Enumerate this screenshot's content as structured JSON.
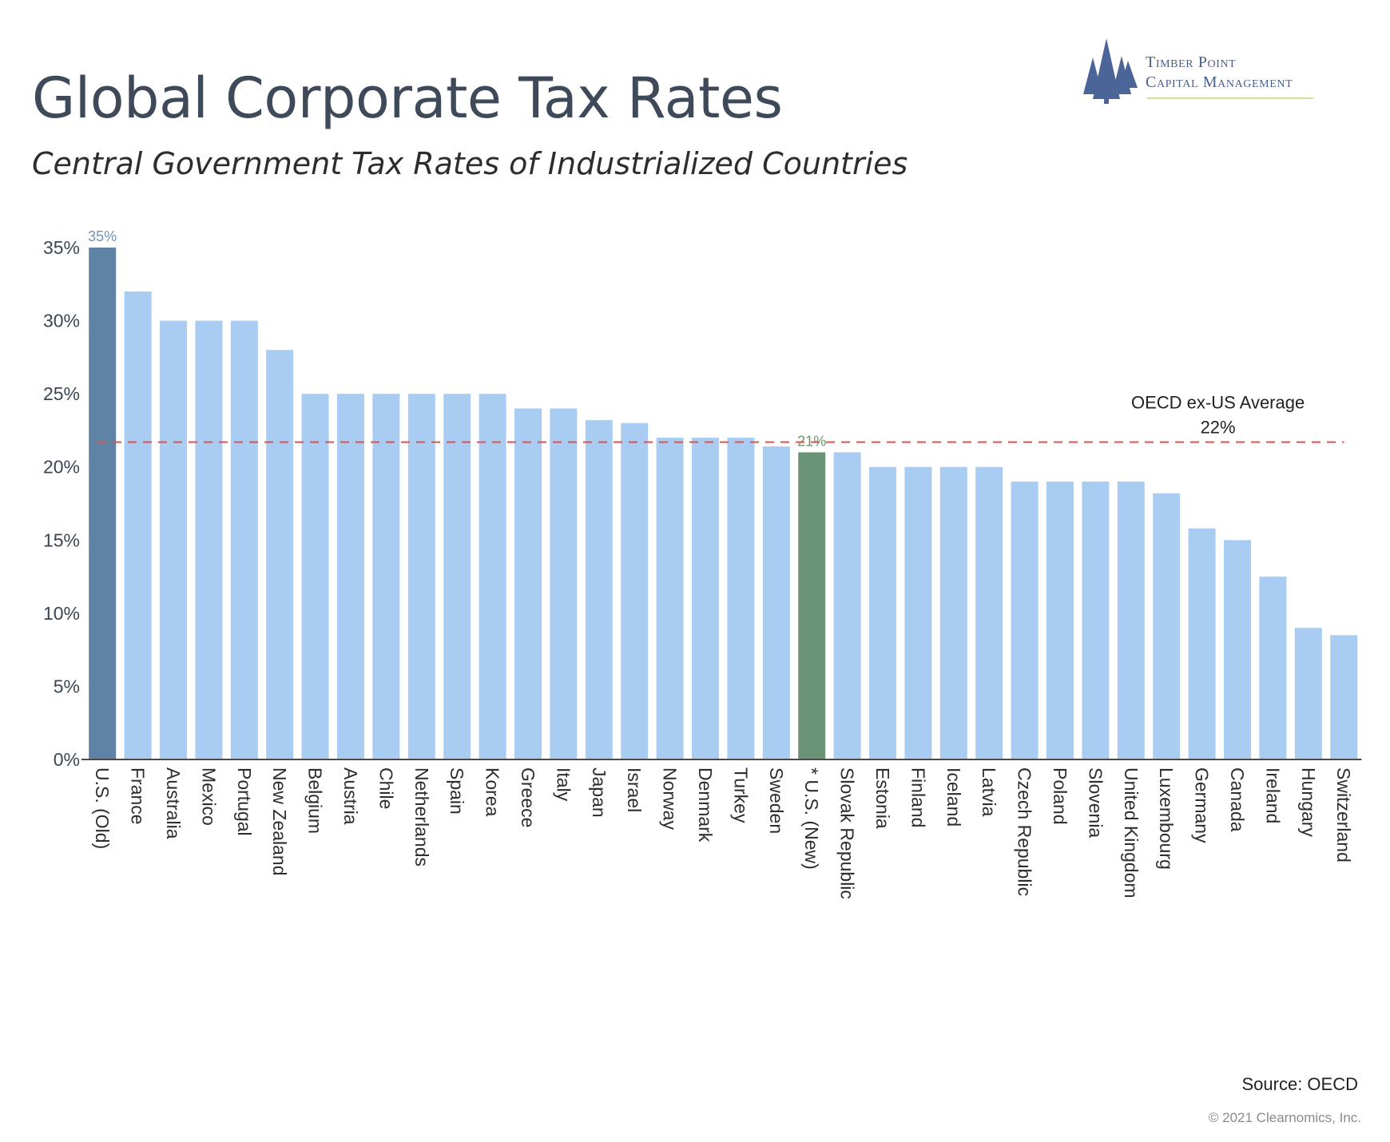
{
  "title": "Global Corporate Tax Rates",
  "subtitle": "Central Government Tax Rates of Industrialized Countries",
  "logo": {
    "line1": "Timber Point",
    "line2": "Capital Management",
    "icon": "pine-trees-icon"
  },
  "source": "Source: OECD",
  "copyright": "© 2021 Clearnomics, Inc.",
  "colors": {
    "default_bar": "#a9cdf2",
    "us_old_bar": "#5f83a5",
    "us_new_bar": "#6a9375",
    "average_line": "#d9534f",
    "us_old_label": "#6f92b8",
    "us_new_label": "#6a9b6c"
  },
  "chart_data": {
    "type": "bar",
    "categories": [
      "U.S. (Old)",
      "France",
      "Australia",
      "Mexico",
      "Portugal",
      "New Zealand",
      "Belgium",
      "Austria",
      "Chile",
      "Netherlands",
      "Spain",
      "Korea",
      "Greece",
      "Italy",
      "Japan",
      "Israel",
      "Norway",
      "Denmark",
      "Turkey",
      "Sweden",
      "* U.S. (New)",
      "Slovak Republic",
      "Estonia",
      "Finland",
      "Iceland",
      "Latvia",
      "Czech Republic",
      "Poland",
      "Slovenia",
      "United Kingdom",
      "Luxembourg",
      "Germany",
      "Canada",
      "Ireland",
      "Hungary",
      "Switzerland"
    ],
    "values": [
      35,
      32,
      30,
      30,
      30,
      28,
      25,
      25,
      25,
      25,
      25,
      25,
      24,
      24,
      23.2,
      23,
      22,
      22,
      22,
      21.4,
      21,
      21,
      20,
      20,
      20,
      20,
      19,
      19,
      19,
      19,
      18.2,
      15.8,
      15,
      12.5,
      9,
      8.5
    ],
    "highlights": {
      "U.S. (Old)": "us_old_bar",
      "* U.S. (New)": "us_new_bar"
    },
    "data_labels": [
      {
        "category": "U.S. (Old)",
        "text": "35%"
      },
      {
        "category": "* U.S. (New)",
        "text": "21%"
      }
    ],
    "reference_line": {
      "value": 21.7,
      "label": "OECD ex-US Average",
      "value_label": "22%",
      "style": "dashed"
    },
    "yticks": [
      "0%",
      "5%",
      "10%",
      "15%",
      "20%",
      "25%",
      "30%",
      "35%"
    ],
    "ylim": [
      0,
      35
    ],
    "grid": false
  }
}
